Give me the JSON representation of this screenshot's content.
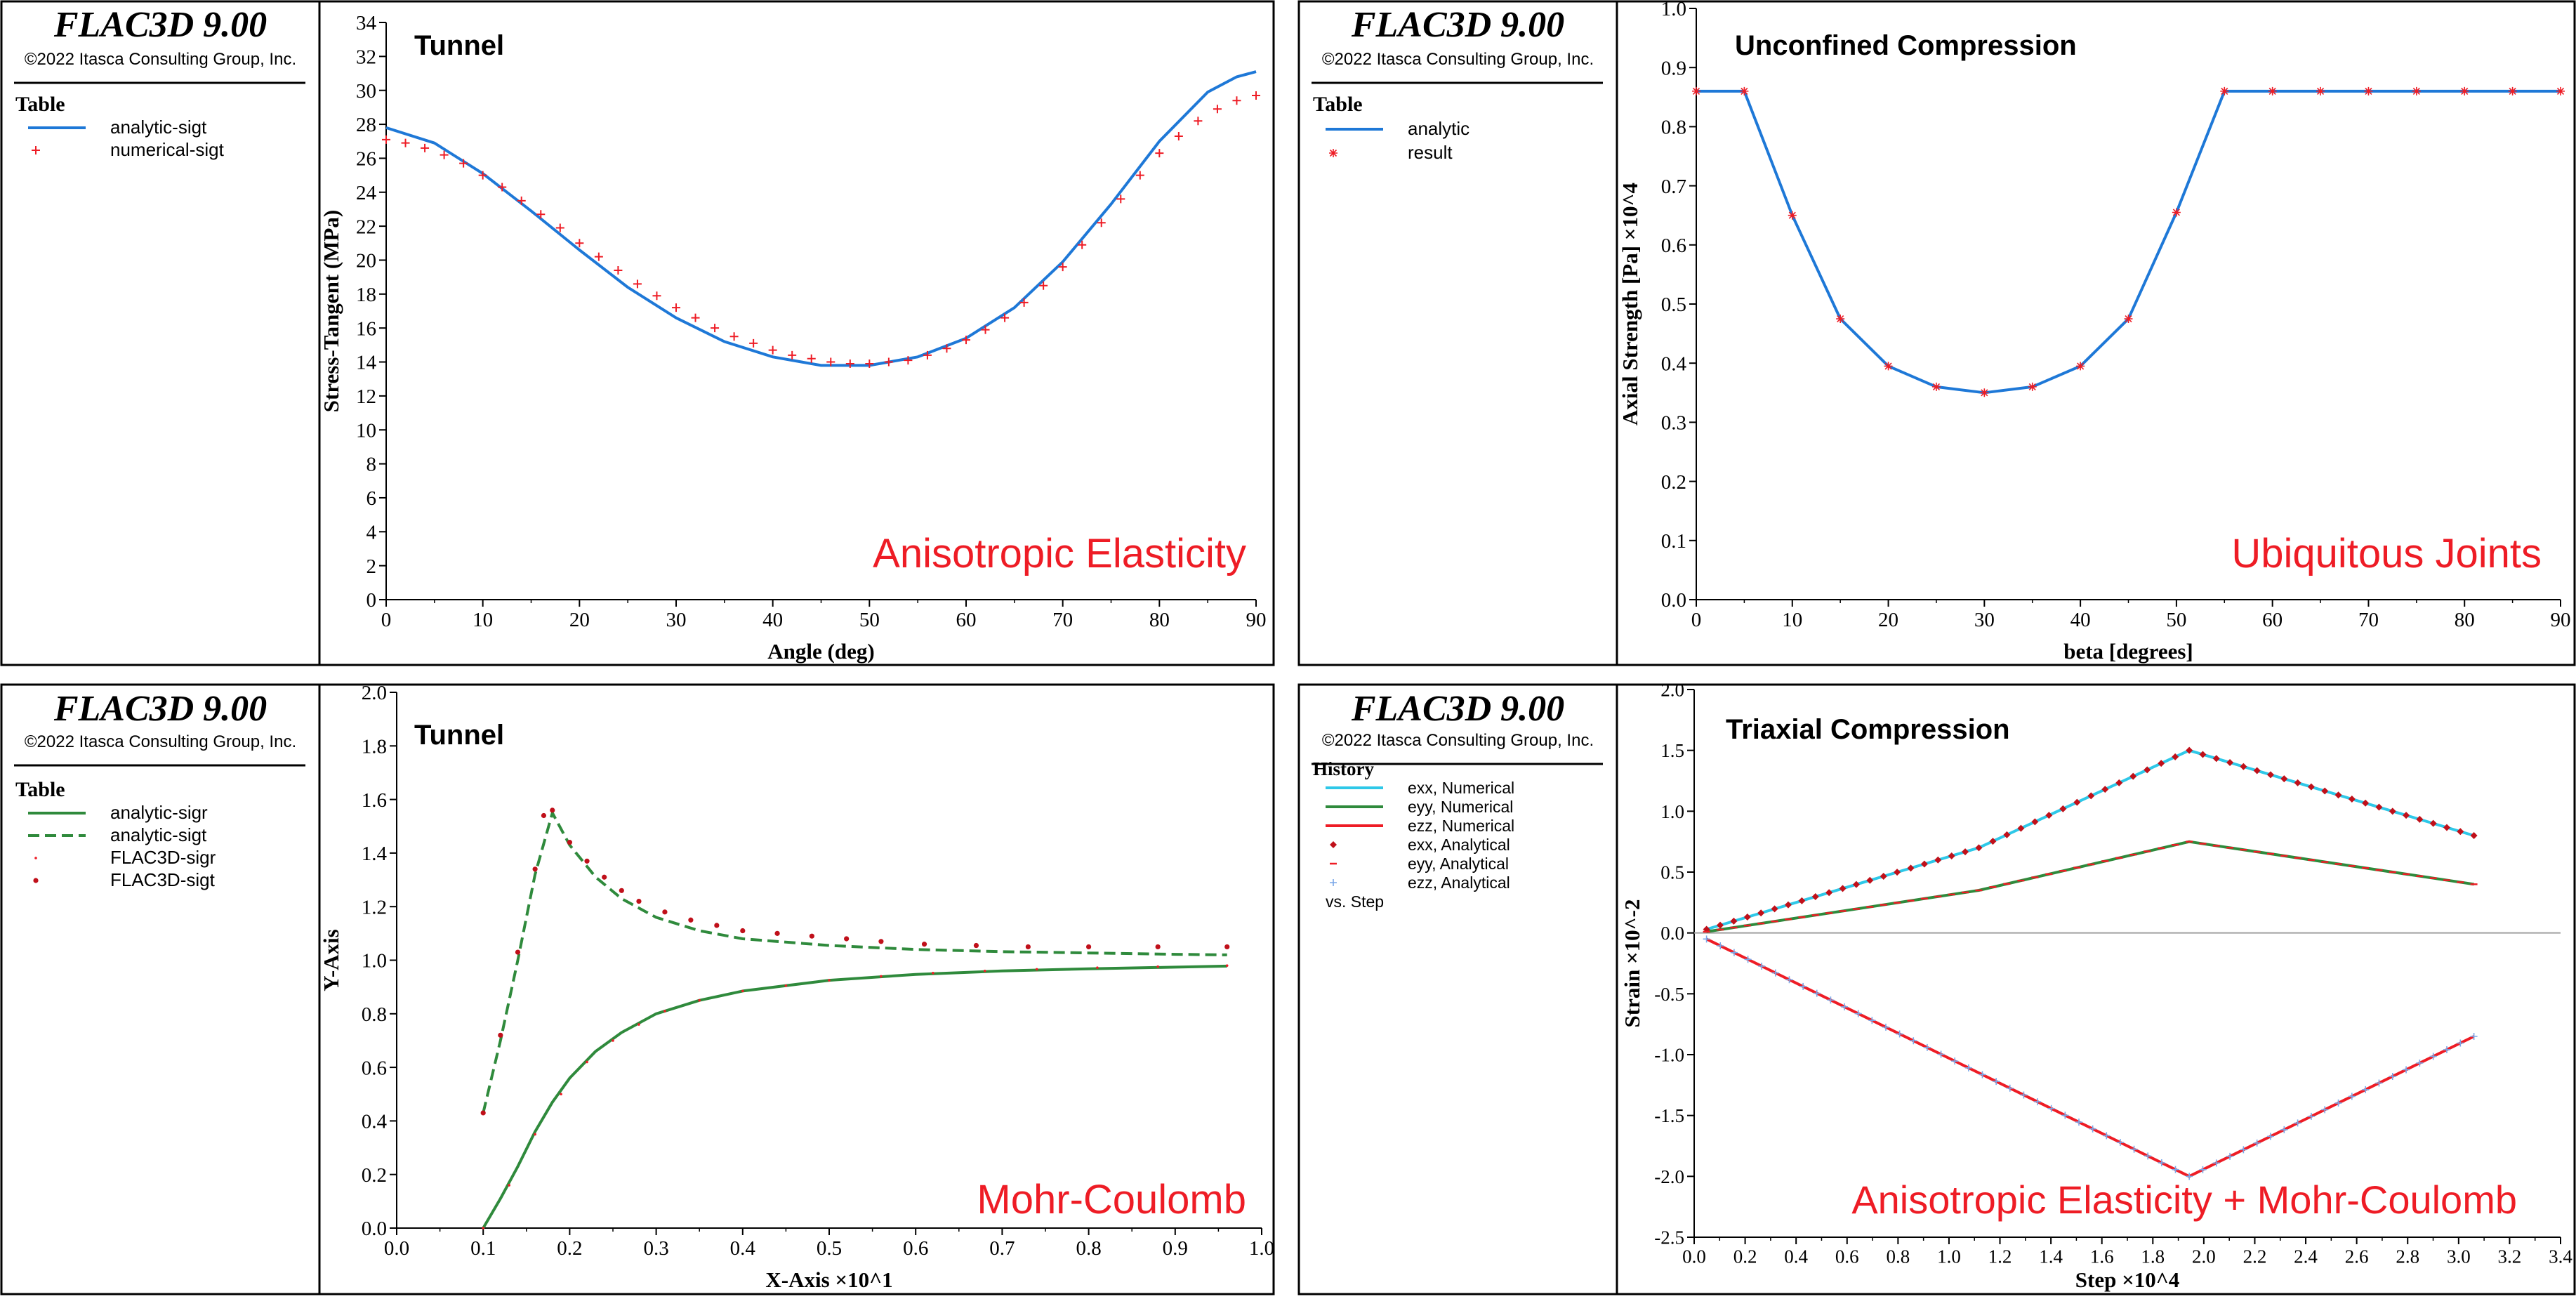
{
  "brand": {
    "product": "FLAC3D 9.00",
    "copyright": "©2022 Itasca Consulting Group, Inc."
  },
  "colors": {
    "blue": "#1e78d7",
    "red": "#ee1c25",
    "green": "#2f8a3c",
    "cyan": "#2ec8e8",
    "light_blue": "#7aa7e8",
    "dark_red": "#c0101a",
    "axis": "#000000",
    "zero_line": "#a0a0a0"
  },
  "chart_data": [
    {
      "id": "p1",
      "type": "line",
      "title": "Tunnel",
      "watermark": "Anisotropic Elasticity",
      "legend_title": "Table",
      "xlabel": "Angle (deg)",
      "ylabel": "Stress-Tangent (MPa)",
      "xlim": [
        0,
        90
      ],
      "ylim": [
        0,
        34
      ],
      "xticks": [
        "0",
        "10",
        "20",
        "30",
        "40",
        "50",
        "60",
        "70",
        "80",
        "90"
      ],
      "yticks": [
        "0",
        "2",
        "4",
        "6",
        "8",
        "10",
        "12",
        "14",
        "16",
        "18",
        "20",
        "22",
        "24",
        "26",
        "28",
        "30",
        "32",
        "34"
      ],
      "series": [
        {
          "name": "analytic-sigt",
          "style": "line",
          "color": "#1e78d7",
          "x": [
            0,
            5,
            10,
            15,
            20,
            25,
            30,
            35,
            40,
            45,
            50,
            55,
            60,
            65,
            70,
            75,
            80,
            85,
            88,
            90
          ],
          "y": [
            27.8,
            26.9,
            25.1,
            22.9,
            20.6,
            18.4,
            16.6,
            15.2,
            14.3,
            13.8,
            13.8,
            14.3,
            15.4,
            17.2,
            19.9,
            23.3,
            27.0,
            29.9,
            30.8,
            31.1
          ]
        },
        {
          "name": "numerical-sigt",
          "style": "plus",
          "color": "#ee1c25",
          "x": [
            0,
            2,
            4,
            6,
            8,
            10,
            12,
            14,
            16,
            18,
            20,
            22,
            24,
            26,
            28,
            30,
            32,
            34,
            36,
            38,
            40,
            42,
            44,
            46,
            48,
            50,
            52,
            54,
            56,
            58,
            60,
            62,
            64,
            66,
            68,
            70,
            72,
            74,
            76,
            78,
            80,
            82,
            84,
            86,
            88,
            90
          ],
          "y": [
            27.1,
            26.9,
            26.6,
            26.2,
            25.7,
            25.0,
            24.3,
            23.5,
            22.7,
            21.9,
            21.0,
            20.2,
            19.4,
            18.6,
            17.9,
            17.2,
            16.6,
            16.0,
            15.5,
            15.1,
            14.7,
            14.4,
            14.2,
            14.0,
            13.9,
            13.9,
            14.0,
            14.1,
            14.4,
            14.8,
            15.3,
            15.9,
            16.6,
            17.5,
            18.5,
            19.6,
            20.9,
            22.2,
            23.6,
            25.0,
            26.3,
            27.3,
            28.2,
            28.9,
            29.4,
            29.7
          ]
        }
      ]
    },
    {
      "id": "p2",
      "type": "line",
      "title": "Unconfined Compression",
      "watermark": "Ubiquitous Joints",
      "legend_title": "Table",
      "xlabel": "beta [degrees]",
      "ylabel": "Axial Strength [Pa] ×10^4",
      "xlim": [
        0,
        90
      ],
      "ylim": [
        0,
        1
      ],
      "xticks": [
        "0",
        "10",
        "20",
        "30",
        "40",
        "50",
        "60",
        "70",
        "80",
        "90"
      ],
      "yticks": [
        "0.0",
        "0.1",
        "0.2",
        "0.3",
        "0.4",
        "0.5",
        "0.6",
        "0.7",
        "0.8",
        "0.9",
        "1.0"
      ],
      "series": [
        {
          "name": "analytic",
          "style": "line",
          "color": "#1e78d7",
          "x": [
            0,
            5,
            10,
            15,
            20,
            25,
            30,
            35,
            40,
            45,
            50,
            55,
            60,
            65,
            70,
            75,
            80,
            85,
            90
          ],
          "y": [
            0.86,
            0.86,
            0.65,
            0.475,
            0.395,
            0.36,
            0.35,
            0.36,
            0.395,
            0.475,
            0.655,
            0.86,
            0.86,
            0.86,
            0.86,
            0.86,
            0.86,
            0.86,
            0.86
          ]
        },
        {
          "name": "result",
          "style": "star",
          "color": "#ee1c25",
          "x": [
            0,
            5,
            10,
            15,
            20,
            25,
            30,
            35,
            40,
            45,
            50,
            55,
            60,
            65,
            70,
            75,
            80,
            85,
            90
          ],
          "y": [
            0.86,
            0.86,
            0.65,
            0.475,
            0.395,
            0.36,
            0.35,
            0.36,
            0.395,
            0.475,
            0.655,
            0.86,
            0.86,
            0.86,
            0.86,
            0.86,
            0.86,
            0.86,
            0.86
          ]
        }
      ]
    },
    {
      "id": "p3",
      "type": "line",
      "title": "Tunnel",
      "watermark": "Mohr-Coulomb",
      "legend_title": "Table",
      "xlabel": "X-Axis ×10^1",
      "ylabel": "Y-Axis",
      "xlim": [
        0,
        1
      ],
      "ylim": [
        0,
        2
      ],
      "xticks": [
        "0.0",
        "0.1",
        "0.2",
        "0.3",
        "0.4",
        "0.5",
        "0.6",
        "0.7",
        "0.8",
        "0.9",
        "1.0"
      ],
      "yticks": [
        "0.0",
        "0.2",
        "0.4",
        "0.6",
        "0.8",
        "1.0",
        "1.2",
        "1.4",
        "1.6",
        "1.8",
        "2.0"
      ],
      "series": [
        {
          "name": "analytic-sigr",
          "style": "line",
          "color": "#2f8a3c",
          "x": [
            0.1,
            0.12,
            0.14,
            0.16,
            0.18,
            0.2,
            0.23,
            0.26,
            0.3,
            0.35,
            0.4,
            0.5,
            0.6,
            0.7,
            0.8,
            0.9,
            0.96
          ],
          "y": [
            0.0,
            0.11,
            0.23,
            0.36,
            0.47,
            0.56,
            0.66,
            0.73,
            0.8,
            0.85,
            0.885,
            0.925,
            0.947,
            0.96,
            0.968,
            0.974,
            0.978
          ]
        },
        {
          "name": "analytic-sigt",
          "style": "dash",
          "color": "#2f8a3c",
          "x": [
            0.1,
            0.12,
            0.14,
            0.16,
            0.18,
            0.2,
            0.23,
            0.26,
            0.3,
            0.35,
            0.4,
            0.5,
            0.6,
            0.7,
            0.8,
            0.9,
            0.96
          ],
          "y": [
            0.43,
            0.7,
            1.0,
            1.32,
            1.55,
            1.43,
            1.31,
            1.23,
            1.16,
            1.11,
            1.08,
            1.055,
            1.04,
            1.032,
            1.027,
            1.022,
            1.02
          ]
        },
        {
          "name": "FLAC3D-sigr",
          "style": "tinydot",
          "color": "#ee1c25",
          "x": [
            0.1,
            0.13,
            0.16,
            0.19,
            0.22,
            0.25,
            0.28,
            0.31,
            0.35,
            0.4,
            0.45,
            0.5,
            0.56,
            0.62,
            0.68,
            0.74,
            0.81,
            0.88,
            0.96
          ],
          "y": [
            0.0,
            0.16,
            0.35,
            0.5,
            0.62,
            0.7,
            0.76,
            0.81,
            0.85,
            0.885,
            0.905,
            0.925,
            0.94,
            0.952,
            0.96,
            0.966,
            0.972,
            0.976,
            0.98
          ]
        },
        {
          "name": "FLAC3D-sigt",
          "style": "dot",
          "color": "#c0101a",
          "x": [
            0.1,
            0.12,
            0.14,
            0.16,
            0.17,
            0.18,
            0.2,
            0.22,
            0.24,
            0.26,
            0.28,
            0.31,
            0.34,
            0.37,
            0.4,
            0.44,
            0.48,
            0.52,
            0.56,
            0.61,
            0.67,
            0.73,
            0.8,
            0.88,
            0.96
          ],
          "y": [
            0.43,
            0.72,
            1.03,
            1.34,
            1.54,
            1.56,
            1.44,
            1.37,
            1.31,
            1.26,
            1.22,
            1.18,
            1.15,
            1.13,
            1.11,
            1.1,
            1.09,
            1.08,
            1.07,
            1.06,
            1.055,
            1.05,
            1.05,
            1.05,
            1.05
          ]
        }
      ]
    },
    {
      "id": "p4",
      "type": "line",
      "title": "Triaxial Compression",
      "watermark": "Anisotropic Elasticity + Mohr-Coulomb",
      "legend_title": "History",
      "legend_footer": "vs. Step",
      "xlabel": "Step ×10^4",
      "ylabel": "Strain ×10^-2",
      "xlim": [
        0,
        3.5
      ],
      "ylim": [
        -2.5,
        2
      ],
      "xticks": [
        "0.0",
        "0.2",
        "0.4",
        "0.6",
        "0.8",
        "1.0",
        "1.2",
        "1.4",
        "1.6",
        "1.8",
        "2.0",
        "2.2",
        "2.4",
        "2.6",
        "2.8",
        "3.0",
        "3.2",
        "3.4"
      ],
      "yticks": [
        "-2.5",
        "-2.0",
        "-1.5",
        "-1.0",
        "-0.5",
        "0.0",
        "0.5",
        "1.0",
        "1.5",
        "2.0"
      ],
      "series": [
        {
          "name": "exx, Numerical",
          "style": "line",
          "color": "#2ec8e8",
          "x": [
            0.05,
            1.15,
            2.0,
            3.15
          ],
          "y": [
            0.03,
            0.7,
            1.5,
            0.8
          ]
        },
        {
          "name": "eyy, Numerical",
          "style": "line",
          "color": "#2f8a3c",
          "x": [
            0.05,
            1.15,
            2.0,
            3.15
          ],
          "y": [
            0.01,
            0.35,
            0.75,
            0.4
          ]
        },
        {
          "name": "ezz, Numerical",
          "style": "line",
          "color": "#ee1c25",
          "x": [
            0.05,
            2.0,
            3.15
          ],
          "y": [
            -0.05,
            -2.0,
            -0.85
          ]
        },
        {
          "name": "exx, Analytical",
          "style": "diamond",
          "color": "#c0101a",
          "x": [
            0.05,
            1.15,
            2.0,
            3.15
          ],
          "y": [
            0.03,
            0.7,
            1.5,
            0.8
          ]
        },
        {
          "name": "eyy, Analytical",
          "style": "dash-marker",
          "color": "#ee1c25",
          "x": [
            0.05,
            1.15,
            2.0,
            3.15
          ],
          "y": [
            0.01,
            0.35,
            0.75,
            0.4
          ]
        },
        {
          "name": "ezz, Analytical",
          "style": "cross-marker",
          "color": "#7aa7e8",
          "x": [
            0.05,
            2.0,
            3.15
          ],
          "y": [
            -0.05,
            -2.0,
            -0.85
          ]
        }
      ]
    }
  ]
}
